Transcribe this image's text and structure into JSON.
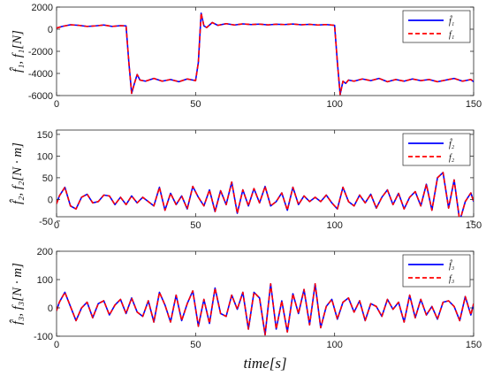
{
  "chart_data": [
    {
      "type": "line",
      "ylabel": "f̂₁, f₁[N]",
      "xlabel": "",
      "xlim": [
        0,
        150
      ],
      "ylim": [
        -6000,
        2000
      ],
      "xticks": [
        "0",
        "50",
        "100",
        "150"
      ],
      "yticks": [
        "2000",
        "0",
        "-2000",
        "-4000",
        "-6000"
      ],
      "legend_position": "top-right",
      "series": [
        {
          "name": "f̂₁",
          "color": "#0000ff",
          "style": "solid",
          "x": [
            0,
            2,
            5,
            8,
            11,
            14,
            17,
            20,
            23,
            25,
            26,
            27,
            28,
            29,
            30,
            32,
            35,
            38,
            41,
            44,
            47,
            50,
            51,
            52,
            53,
            54,
            56,
            58,
            61,
            64,
            67,
            70,
            73,
            76,
            79,
            82,
            85,
            88,
            91,
            94,
            97,
            100,
            101,
            102,
            103,
            104,
            105,
            107,
            110,
            113,
            116,
            119,
            122,
            125,
            128,
            131,
            134,
            137,
            140,
            143,
            146,
            149,
            150
          ],
          "y": [
            100,
            250,
            400,
            350,
            250,
            300,
            380,
            250,
            320,
            300,
            -3000,
            -5800,
            -4900,
            -4100,
            -4600,
            -4700,
            -4450,
            -4700,
            -4550,
            -4750,
            -4500,
            -4650,
            -3000,
            1450,
            300,
            150,
            600,
            350,
            500,
            380,
            480,
            420,
            460,
            390,
            450,
            420,
            470,
            400,
            440,
            380,
            420,
            350,
            -3000,
            -5900,
            -4700,
            -4900,
            -4600,
            -4700,
            -4500,
            -4650,
            -4450,
            -4750,
            -4550,
            -4700,
            -4500,
            -4650,
            -4550,
            -4750,
            -4600,
            -4450,
            -4700,
            -4550,
            -4750
          ]
        },
        {
          "name": "f₁",
          "color": "#ff0000",
          "style": "dashed",
          "x": [
            0,
            2,
            5,
            8,
            11,
            14,
            17,
            20,
            23,
            25,
            26,
            27,
            28,
            29,
            30,
            32,
            35,
            38,
            41,
            44,
            47,
            50,
            51,
            52,
            53,
            54,
            56,
            58,
            61,
            64,
            67,
            70,
            73,
            76,
            79,
            82,
            85,
            88,
            91,
            94,
            97,
            100,
            101,
            102,
            103,
            104,
            105,
            107,
            110,
            113,
            116,
            119,
            122,
            125,
            128,
            131,
            134,
            137,
            140,
            143,
            146,
            149,
            150
          ],
          "y": [
            100,
            250,
            400,
            350,
            250,
            300,
            380,
            250,
            320,
            300,
            -3000,
            -5800,
            -4900,
            -4100,
            -4600,
            -4700,
            -4450,
            -4700,
            -4550,
            -4750,
            -4500,
            -4650,
            -3000,
            1450,
            300,
            150,
            600,
            350,
            500,
            380,
            480,
            420,
            460,
            390,
            450,
            420,
            470,
            400,
            440,
            380,
            420,
            350,
            -3000,
            -5900,
            -4700,
            -4900,
            -4600,
            -4700,
            -4500,
            -4650,
            -4450,
            -4750,
            -4550,
            -4700,
            -4500,
            -4650,
            -4550,
            -4750,
            -4600,
            -4450,
            -4700,
            -4550,
            -4750
          ]
        }
      ]
    },
    {
      "type": "line",
      "ylabel": "f̂₂, f₂[N · m]",
      "xlabel": "",
      "xlim": [
        0,
        150
      ],
      "ylim": [
        -40,
        160
      ],
      "xticks": [
        "0",
        "50",
        "100",
        "150"
      ],
      "yticks": [
        "150",
        "100",
        "50",
        "0",
        "-50"
      ],
      "legend_position": "top-right",
      "series": [
        {
          "name": "f̂₂",
          "color": "#0000ff",
          "style": "solid",
          "x": [
            0,
            1,
            3,
            5,
            7,
            9,
            11,
            13,
            15,
            17,
            19,
            21,
            23,
            25,
            27,
            29,
            31,
            33,
            35,
            37,
            39,
            41,
            43,
            45,
            47,
            49,
            51,
            53,
            55,
            57,
            59,
            61,
            63,
            65,
            67,
            69,
            71,
            73,
            75,
            77,
            79,
            81,
            83,
            85,
            87,
            89,
            91,
            93,
            95,
            97,
            99,
            101,
            103,
            105,
            107,
            109,
            111,
            113,
            115,
            117,
            119,
            121,
            123,
            125,
            127,
            129,
            131,
            133,
            135,
            137,
            139,
            141,
            143,
            145,
            147,
            149,
            150
          ],
          "y": [
            -10,
            8,
            28,
            -15,
            -22,
            5,
            12,
            -8,
            -5,
            10,
            8,
            -12,
            5,
            -12,
            8,
            -8,
            5,
            -5,
            -15,
            28,
            -25,
            14,
            -12,
            8,
            -22,
            30,
            5,
            -15,
            22,
            -28,
            20,
            -12,
            40,
            -32,
            22,
            -15,
            25,
            -8,
            30,
            -15,
            -5,
            15,
            -25,
            28,
            -12,
            8,
            -5,
            5,
            -5,
            10,
            -8,
            -22,
            28,
            -5,
            -15,
            10,
            -8,
            12,
            -20,
            5,
            22,
            -12,
            14,
            -22,
            5,
            18,
            -15,
            35,
            -25,
            50,
            62,
            -20,
            45,
            -50,
            -5,
            15,
            -5
          ]
        },
        {
          "name": "f₂",
          "color": "#ff0000",
          "style": "dashed",
          "x": [
            0,
            1,
            3,
            5,
            7,
            9,
            11,
            13,
            15,
            17,
            19,
            21,
            23,
            25,
            27,
            29,
            31,
            33,
            35,
            37,
            39,
            41,
            43,
            45,
            47,
            49,
            51,
            53,
            55,
            57,
            59,
            61,
            63,
            65,
            67,
            69,
            71,
            73,
            75,
            77,
            79,
            81,
            83,
            85,
            87,
            89,
            91,
            93,
            95,
            97,
            99,
            101,
            103,
            105,
            107,
            109,
            111,
            113,
            115,
            117,
            119,
            121,
            123,
            125,
            127,
            129,
            131,
            133,
            135,
            137,
            139,
            141,
            143,
            145,
            147,
            149,
            150
          ],
          "y": [
            -10,
            8,
            28,
            -15,
            -22,
            5,
            12,
            -8,
            -5,
            10,
            8,
            -12,
            5,
            -12,
            8,
            -8,
            5,
            -5,
            -15,
            28,
            -25,
            14,
            -12,
            8,
            -22,
            30,
            5,
            -15,
            22,
            -28,
            20,
            -12,
            40,
            -32,
            22,
            -15,
            25,
            -8,
            30,
            -15,
            -5,
            15,
            -25,
            28,
            -12,
            8,
            -5,
            5,
            -5,
            10,
            -8,
            -22,
            28,
            -5,
            -15,
            10,
            -8,
            12,
            -20,
            5,
            22,
            -12,
            14,
            -22,
            5,
            18,
            -15,
            35,
            -25,
            50,
            62,
            -20,
            45,
            -50,
            -5,
            15,
            -5
          ]
        }
      ]
    },
    {
      "type": "line",
      "ylabel": "f̂₃, f₃[N · m]",
      "xlabel": "time[s]",
      "xlim": [
        0,
        150
      ],
      "ylim": [
        -100,
        200
      ],
      "xticks": [
        "0",
        "50",
        "100",
        "150"
      ],
      "yticks": [
        "200",
        "100",
        "0",
        "-100"
      ],
      "legend_position": "top-right",
      "series": [
        {
          "name": "f̂₃",
          "color": "#0000ff",
          "style": "solid",
          "x": [
            0,
            1,
            3,
            5,
            7,
            9,
            11,
            13,
            15,
            17,
            19,
            21,
            23,
            25,
            27,
            29,
            31,
            33,
            35,
            37,
            39,
            41,
            43,
            45,
            47,
            49,
            51,
            53,
            55,
            57,
            59,
            61,
            63,
            65,
            67,
            69,
            71,
            73,
            75,
            77,
            79,
            81,
            83,
            85,
            87,
            89,
            91,
            93,
            95,
            97,
            99,
            101,
            103,
            105,
            107,
            109,
            111,
            113,
            115,
            117,
            119,
            121,
            123,
            125,
            127,
            129,
            131,
            133,
            135,
            137,
            139,
            141,
            143,
            145,
            147,
            149,
            150
          ],
          "y": [
            -10,
            20,
            55,
            5,
            -45,
            0,
            20,
            -35,
            15,
            25,
            -25,
            10,
            30,
            -20,
            35,
            -15,
            -30,
            25,
            -50,
            55,
            10,
            -50,
            45,
            -45,
            15,
            60,
            -65,
            30,
            -55,
            70,
            -20,
            -30,
            45,
            -5,
            55,
            -75,
            55,
            35,
            -95,
            85,
            -75,
            25,
            -85,
            50,
            -20,
            65,
            -60,
            85,
            -70,
            5,
            30,
            -40,
            20,
            35,
            -15,
            25,
            -45,
            15,
            5,
            -30,
            30,
            -5,
            20,
            -50,
            45,
            -35,
            30,
            -25,
            5,
            -40,
            20,
            25,
            5,
            -45,
            40,
            -25,
            15
          ]
        },
        {
          "name": "f₃",
          "color": "#ff0000",
          "style": "dashed",
          "x": [
            0,
            1,
            3,
            5,
            7,
            9,
            11,
            13,
            15,
            17,
            19,
            21,
            23,
            25,
            27,
            29,
            31,
            33,
            35,
            37,
            39,
            41,
            43,
            45,
            47,
            49,
            51,
            53,
            55,
            57,
            59,
            61,
            63,
            65,
            67,
            69,
            71,
            73,
            75,
            77,
            79,
            81,
            83,
            85,
            87,
            89,
            91,
            93,
            95,
            97,
            99,
            101,
            103,
            105,
            107,
            109,
            111,
            113,
            115,
            117,
            119,
            121,
            123,
            125,
            127,
            129,
            131,
            133,
            135,
            137,
            139,
            141,
            143,
            145,
            147,
            149,
            150
          ],
          "y": [
            -10,
            20,
            55,
            5,
            -45,
            0,
            20,
            -35,
            15,
            25,
            -25,
            10,
            30,
            -20,
            35,
            -15,
            -30,
            25,
            -50,
            55,
            10,
            -50,
            45,
            -45,
            15,
            60,
            -65,
            30,
            -55,
            70,
            -20,
            -30,
            45,
            -5,
            55,
            -75,
            55,
            35,
            -95,
            85,
            -75,
            25,
            -85,
            50,
            -20,
            65,
            -60,
            85,
            -70,
            5,
            30,
            -40,
            20,
            35,
            -15,
            25,
            -45,
            15,
            5,
            -30,
            30,
            -5,
            20,
            -50,
            45,
            -35,
            30,
            -25,
            5,
            -40,
            20,
            25,
            5,
            -45,
            40,
            -25,
            15
          ]
        }
      ]
    }
  ]
}
